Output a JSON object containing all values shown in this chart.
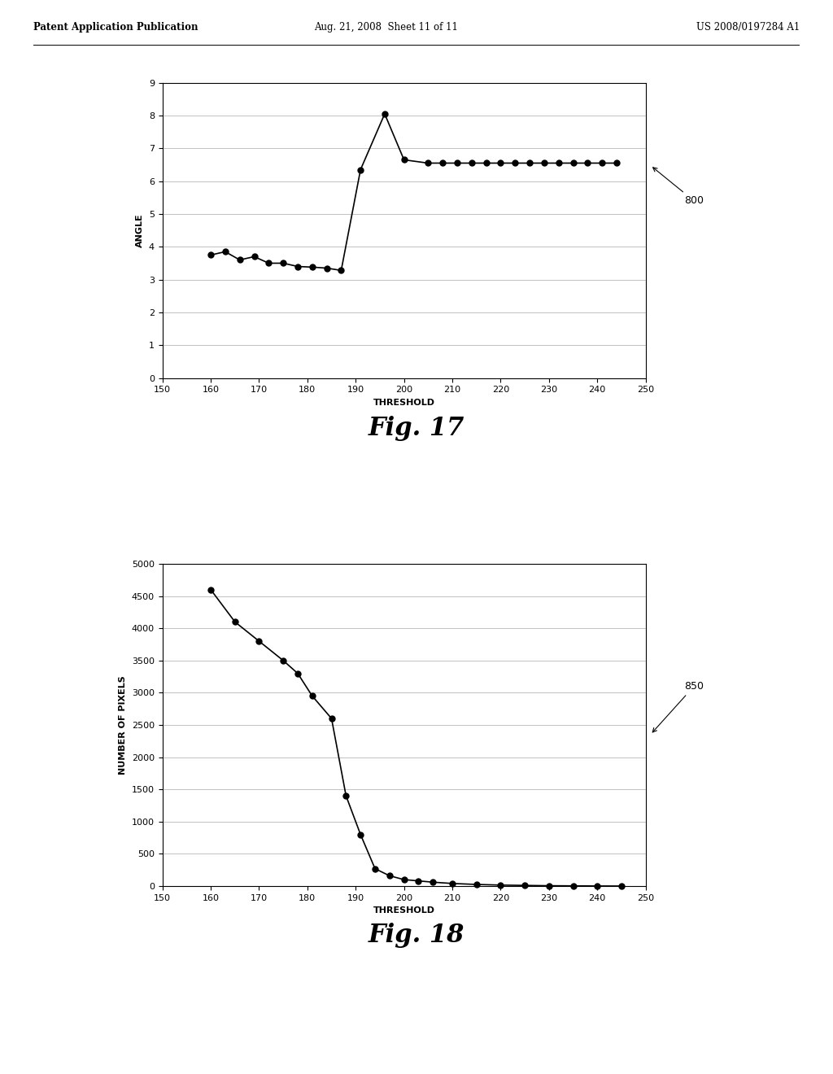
{
  "fig17": {
    "x": [
      160,
      163,
      166,
      169,
      172,
      175,
      178,
      181,
      184,
      187,
      191,
      196,
      200,
      205,
      208,
      211,
      214,
      217,
      220,
      223,
      226,
      229,
      232,
      235,
      238,
      241,
      244
    ],
    "y": [
      3.75,
      3.85,
      3.6,
      3.7,
      3.5,
      3.5,
      3.4,
      3.38,
      3.35,
      3.28,
      6.35,
      8.05,
      6.65,
      6.55,
      6.55,
      6.55,
      6.55,
      6.55,
      6.55,
      6.55,
      6.55,
      6.55,
      6.55,
      6.55,
      6.55,
      6.55,
      6.55
    ],
    "xlabel": "THRESHOLD",
    "ylabel": "ANGLE",
    "xlim": [
      150,
      250
    ],
    "ylim": [
      0,
      9
    ],
    "xticks": [
      150,
      160,
      170,
      180,
      190,
      200,
      210,
      220,
      230,
      240,
      250
    ],
    "yticks": [
      0,
      1,
      2,
      3,
      4,
      5,
      6,
      7,
      8,
      9
    ],
    "label": "800"
  },
  "fig18": {
    "x": [
      160,
      165,
      170,
      175,
      178,
      181,
      185,
      188,
      191,
      194,
      197,
      200,
      203,
      206,
      210,
      215,
      220,
      225,
      230,
      235,
      240,
      245
    ],
    "y": [
      4600,
      4100,
      3800,
      3500,
      3300,
      2950,
      2600,
      1400,
      800,
      270,
      160,
      100,
      80,
      60,
      40,
      25,
      15,
      10,
      5,
      3,
      1,
      0
    ],
    "xlabel": "THRESHOLD",
    "ylabel": "NUMBER OF PIXELS",
    "xlim": [
      150,
      250
    ],
    "ylim": [
      0,
      5000
    ],
    "xticks": [
      150,
      160,
      170,
      180,
      190,
      200,
      210,
      220,
      230,
      240,
      250
    ],
    "yticks": [
      0,
      500,
      1000,
      1500,
      2000,
      2500,
      3000,
      3500,
      4000,
      4500,
      5000
    ],
    "label": "850"
  },
  "header_left": "Patent Application Publication",
  "header_mid": "Aug. 21, 2008  Sheet 11 of 11",
  "header_right": "US 2008/0197284 A1",
  "fig17_caption": "Fig. 17",
  "fig18_caption": "Fig. 18",
  "line_color": "#000000",
  "marker_color": "#000000",
  "marker_size": 5,
  "line_width": 1.2,
  "background_color": "#ffffff",
  "grid_color": "#aaaaaa",
  "font_size_axis_label": 8,
  "font_size_tick": 8,
  "font_size_header": 8.5
}
